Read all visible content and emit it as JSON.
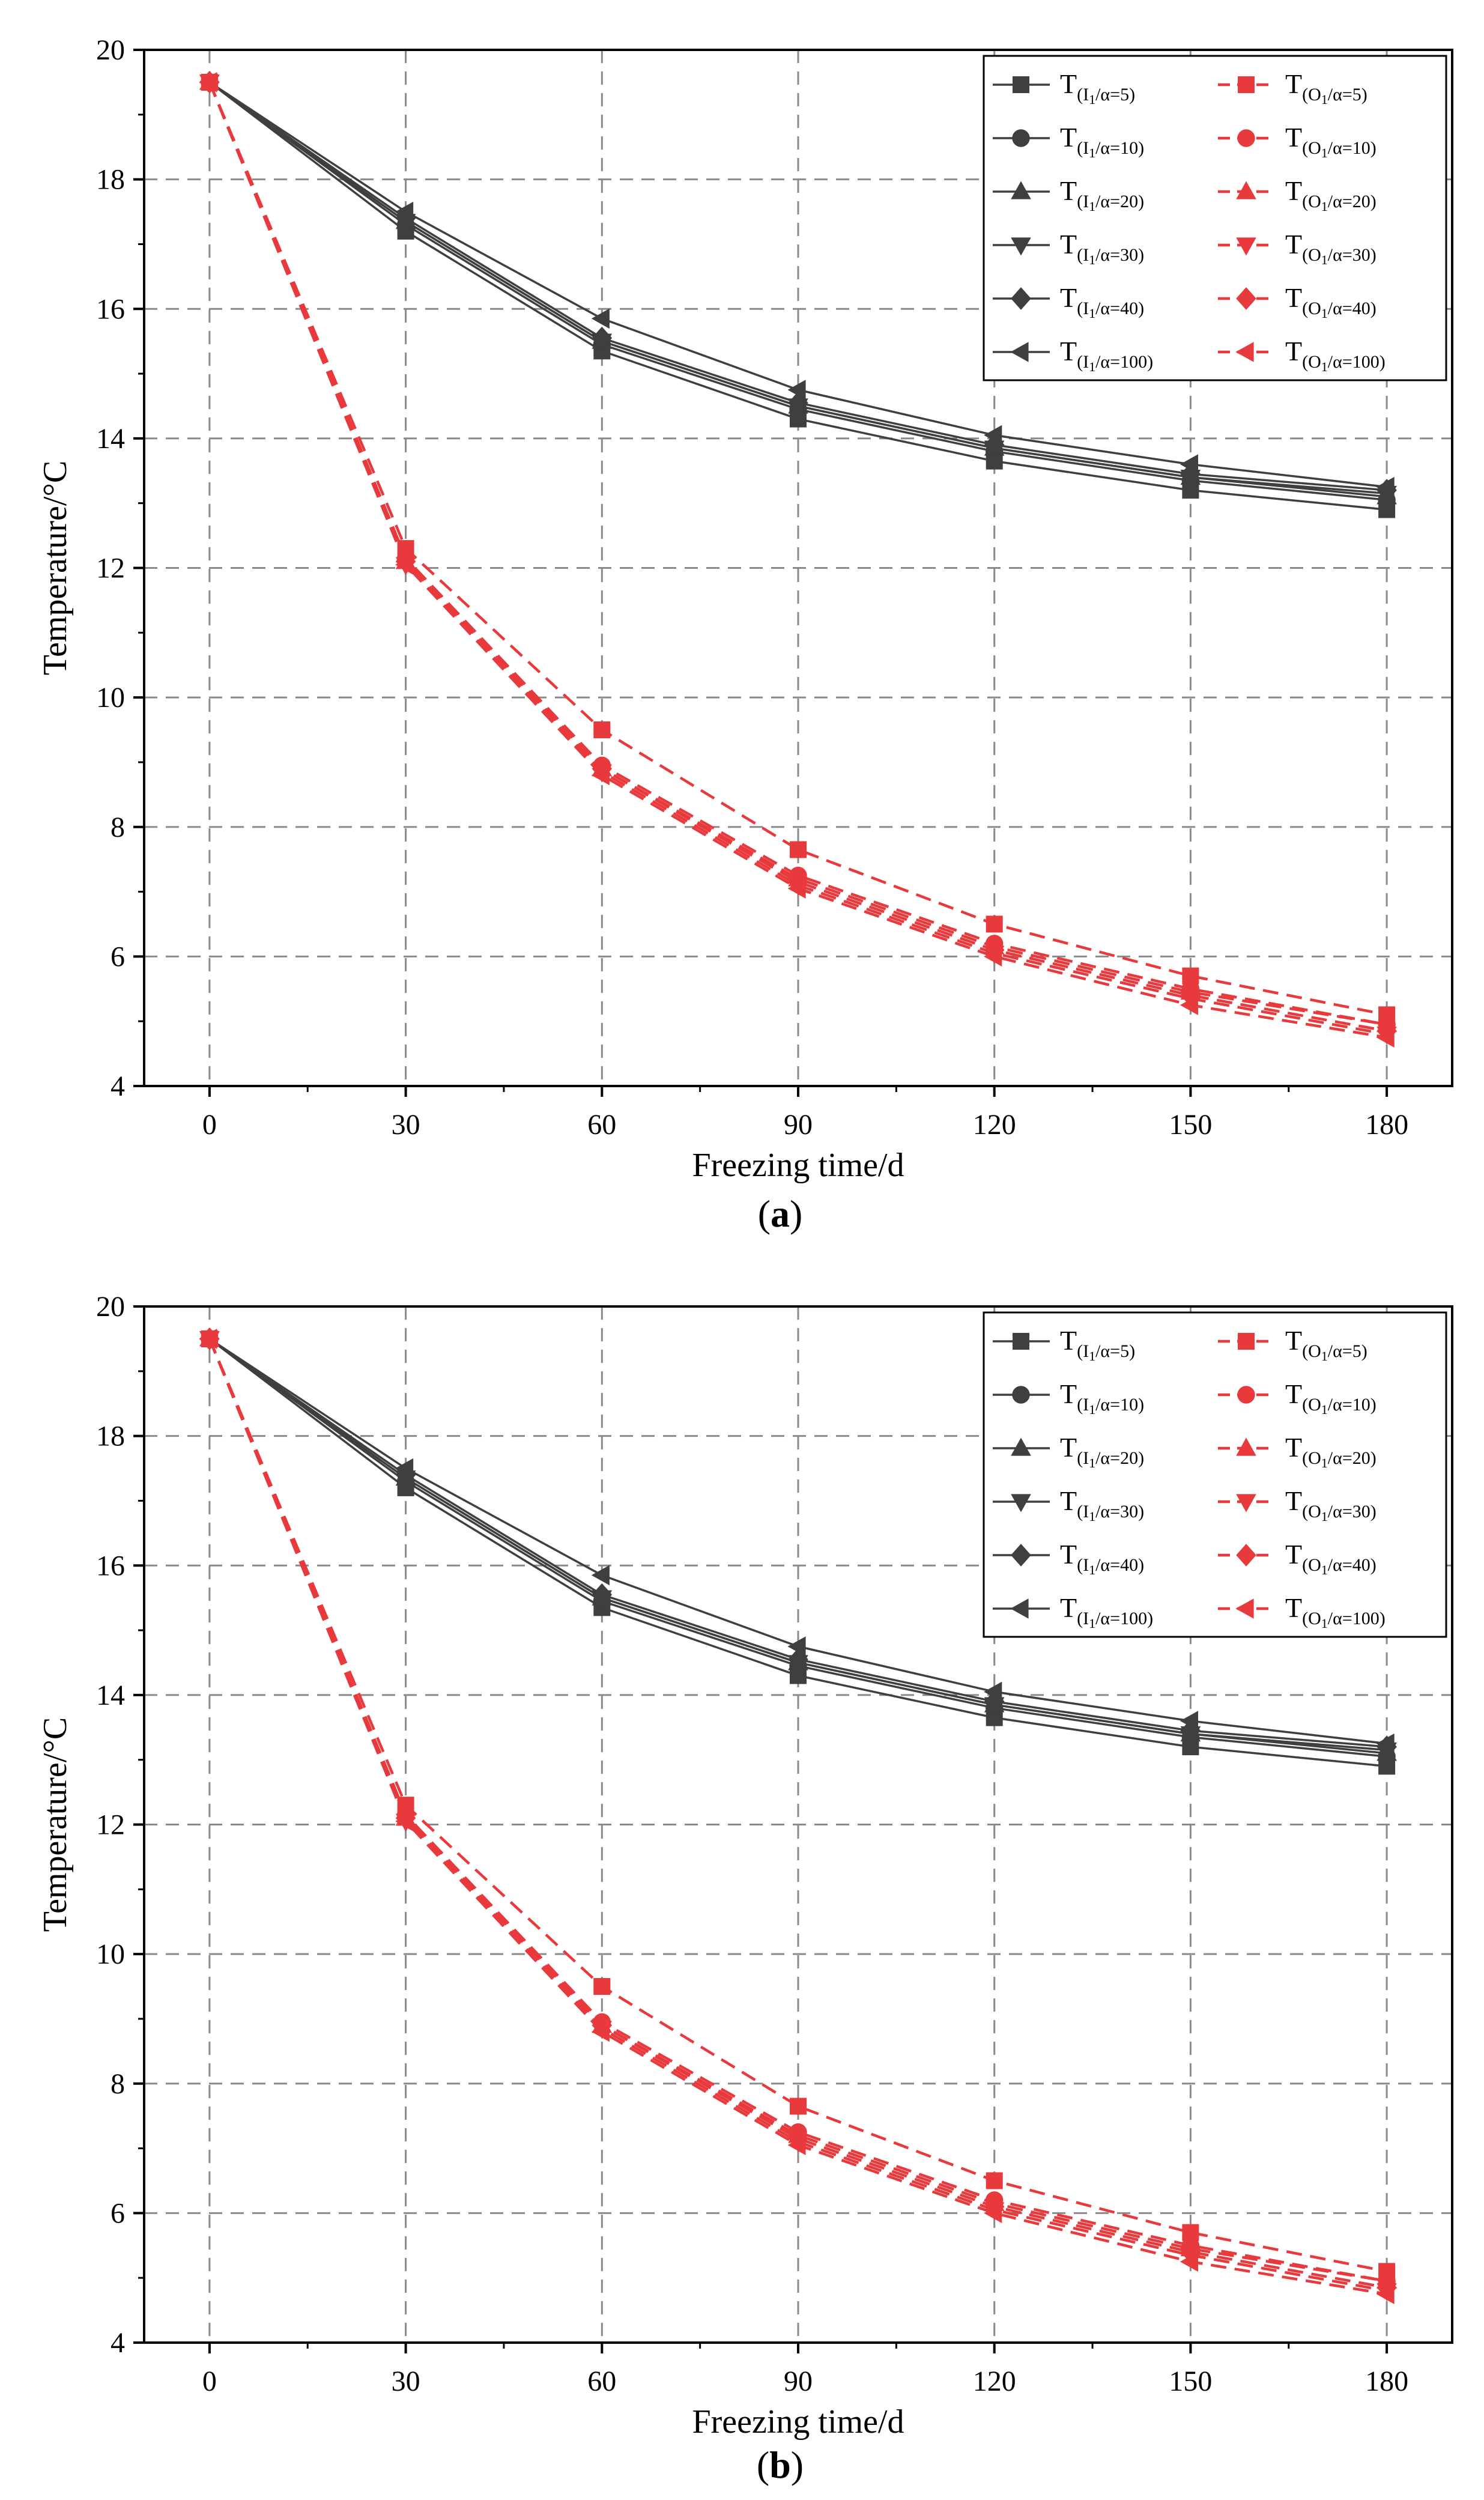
{
  "figure": {
    "panels": [
      "(a)",
      "(b)"
    ],
    "panel_letters": [
      "a",
      "b"
    ]
  },
  "colors": {
    "inner": "#3f3f3f",
    "outer": "#e8393d",
    "grid": "#8a8a8a",
    "axis": "#000000"
  },
  "legend": {
    "prefix": "T",
    "inner_sub": "(I",
    "outer_sub": "(O",
    "sub_index": "1",
    "entries": [
      {
        "alpha": "/α=5)",
        "marker": "square"
      },
      {
        "alpha": "/α=10)",
        "marker": "circle"
      },
      {
        "alpha": "/α=20)",
        "marker": "triangle-up"
      },
      {
        "alpha": "/α=30)",
        "marker": "triangle-down"
      },
      {
        "alpha": "/α=40)",
        "marker": "diamond"
      },
      {
        "alpha": "/α=100)",
        "marker": "triangle-left"
      }
    ]
  },
  "chart_data": [
    {
      "type": "line",
      "panel": "(a)",
      "xlabel": "Freezing time/d",
      "ylabel": "Temperature/°C",
      "x": [
        0,
        30,
        60,
        90,
        120,
        150,
        180
      ],
      "xticks": [
        0,
        30,
        60,
        90,
        120,
        150,
        180
      ],
      "yticks": [
        4,
        6,
        8,
        10,
        12,
        14,
        16,
        18,
        20
      ],
      "xlim": [
        -10,
        190
      ],
      "ylim": [
        4,
        20
      ],
      "grid": true,
      "legend_position": "top-right",
      "series": [
        {
          "name": "T(I1/α=5)",
          "group": "inner",
          "marker": "square",
          "values": [
            19.5,
            17.2,
            15.35,
            14.3,
            13.65,
            13.2,
            12.9
          ]
        },
        {
          "name": "T(I1/α=10)",
          "group": "inner",
          "marker": "circle",
          "values": [
            19.5,
            17.3,
            15.45,
            14.45,
            13.8,
            13.35,
            13.05
          ]
        },
        {
          "name": "T(I1/α=20)",
          "group": "inner",
          "marker": "triangle-up",
          "values": [
            19.5,
            17.35,
            15.5,
            14.5,
            13.85,
            13.4,
            13.1
          ]
        },
        {
          "name": "T(I1/α=30)",
          "group": "inner",
          "marker": "triangle-down",
          "values": [
            19.5,
            17.35,
            15.5,
            14.5,
            13.85,
            13.4,
            13.15
          ]
        },
        {
          "name": "T(I1/α=40)",
          "group": "inner",
          "marker": "diamond",
          "values": [
            19.5,
            17.4,
            15.55,
            14.55,
            13.9,
            13.45,
            13.2
          ]
        },
        {
          "name": "T(I1/α=100)",
          "group": "inner",
          "marker": "triangle-left",
          "values": [
            19.5,
            17.5,
            15.85,
            14.75,
            14.05,
            13.6,
            13.25
          ]
        },
        {
          "name": "T(O1/α=5)",
          "group": "outer",
          "marker": "square",
          "values": [
            19.5,
            12.3,
            9.5,
            7.65,
            6.5,
            5.7,
            5.1
          ]
        },
        {
          "name": "T(O1/α=10)",
          "group": "outer",
          "marker": "circle",
          "values": [
            19.5,
            12.15,
            8.95,
            7.25,
            6.2,
            5.5,
            4.95
          ]
        },
        {
          "name": "T(O1/α=20)",
          "group": "outer",
          "marker": "triangle-up",
          "values": [
            19.5,
            12.1,
            8.9,
            7.2,
            6.15,
            5.45,
            4.95
          ]
        },
        {
          "name": "T(O1/α=30)",
          "group": "outer",
          "marker": "triangle-down",
          "values": [
            19.5,
            12.05,
            8.85,
            7.1,
            6.05,
            5.35,
            4.8
          ]
        },
        {
          "name": "T(O1/α=40)",
          "group": "outer",
          "marker": "diamond",
          "values": [
            19.5,
            12.1,
            8.9,
            7.15,
            6.1,
            5.4,
            4.85
          ]
        },
        {
          "name": "T(O1/α=100)",
          "group": "outer",
          "marker": "triangle-left",
          "values": [
            19.5,
            12.05,
            8.8,
            7.05,
            6.0,
            5.25,
            4.75
          ]
        }
      ]
    },
    {
      "type": "line",
      "panel": "(b)",
      "xlabel": "Freezing time/d",
      "ylabel": "Temperature/°C",
      "x": [
        0,
        30,
        60,
        90,
        120,
        150,
        180
      ],
      "xticks": [
        0,
        30,
        60,
        90,
        120,
        150,
        180
      ],
      "yticks": [
        4,
        6,
        8,
        10,
        12,
        14,
        16,
        18,
        20
      ],
      "xlim": [
        -10,
        190
      ],
      "ylim": [
        4,
        20
      ],
      "grid": true,
      "legend_position": "top-right",
      "series": [
        {
          "name": "T(I1/α=5)",
          "group": "inner",
          "marker": "square",
          "values": [
            19.5,
            17.2,
            15.35,
            14.3,
            13.65,
            13.2,
            12.9
          ]
        },
        {
          "name": "T(I1/α=10)",
          "group": "inner",
          "marker": "circle",
          "values": [
            19.5,
            17.3,
            15.45,
            14.45,
            13.8,
            13.35,
            13.05
          ]
        },
        {
          "name": "T(I1/α=20)",
          "group": "inner",
          "marker": "triangle-up",
          "values": [
            19.5,
            17.35,
            15.5,
            14.5,
            13.85,
            13.4,
            13.1
          ]
        },
        {
          "name": "T(I1/α=30)",
          "group": "inner",
          "marker": "triangle-down",
          "values": [
            19.5,
            17.35,
            15.5,
            14.5,
            13.85,
            13.4,
            13.15
          ]
        },
        {
          "name": "T(I1/α=40)",
          "group": "inner",
          "marker": "diamond",
          "values": [
            19.5,
            17.4,
            15.55,
            14.55,
            13.9,
            13.45,
            13.2
          ]
        },
        {
          "name": "T(I1/α=100)",
          "group": "inner",
          "marker": "triangle-left",
          "values": [
            19.5,
            17.5,
            15.85,
            14.75,
            14.05,
            13.6,
            13.25
          ]
        },
        {
          "name": "T(O1/α=5)",
          "group": "outer",
          "marker": "square",
          "values": [
            19.5,
            12.3,
            9.5,
            7.65,
            6.5,
            5.7,
            5.1
          ]
        },
        {
          "name": "T(O1/α=10)",
          "group": "outer",
          "marker": "circle",
          "values": [
            19.5,
            12.15,
            8.95,
            7.25,
            6.2,
            5.5,
            4.95
          ]
        },
        {
          "name": "T(O1/α=20)",
          "group": "outer",
          "marker": "triangle-up",
          "values": [
            19.5,
            12.1,
            8.9,
            7.2,
            6.15,
            5.45,
            4.95
          ]
        },
        {
          "name": "T(O1/α=30)",
          "group": "outer",
          "marker": "triangle-down",
          "values": [
            19.5,
            12.05,
            8.85,
            7.1,
            6.05,
            5.35,
            4.8
          ]
        },
        {
          "name": "T(O1/α=40)",
          "group": "outer",
          "marker": "diamond",
          "values": [
            19.5,
            12.1,
            8.9,
            7.15,
            6.1,
            5.4,
            4.85
          ]
        },
        {
          "name": "T(O1/α=100)",
          "group": "outer",
          "marker": "triangle-left",
          "values": [
            19.5,
            12.05,
            8.8,
            7.05,
            6.0,
            5.25,
            4.75
          ]
        }
      ]
    }
  ]
}
